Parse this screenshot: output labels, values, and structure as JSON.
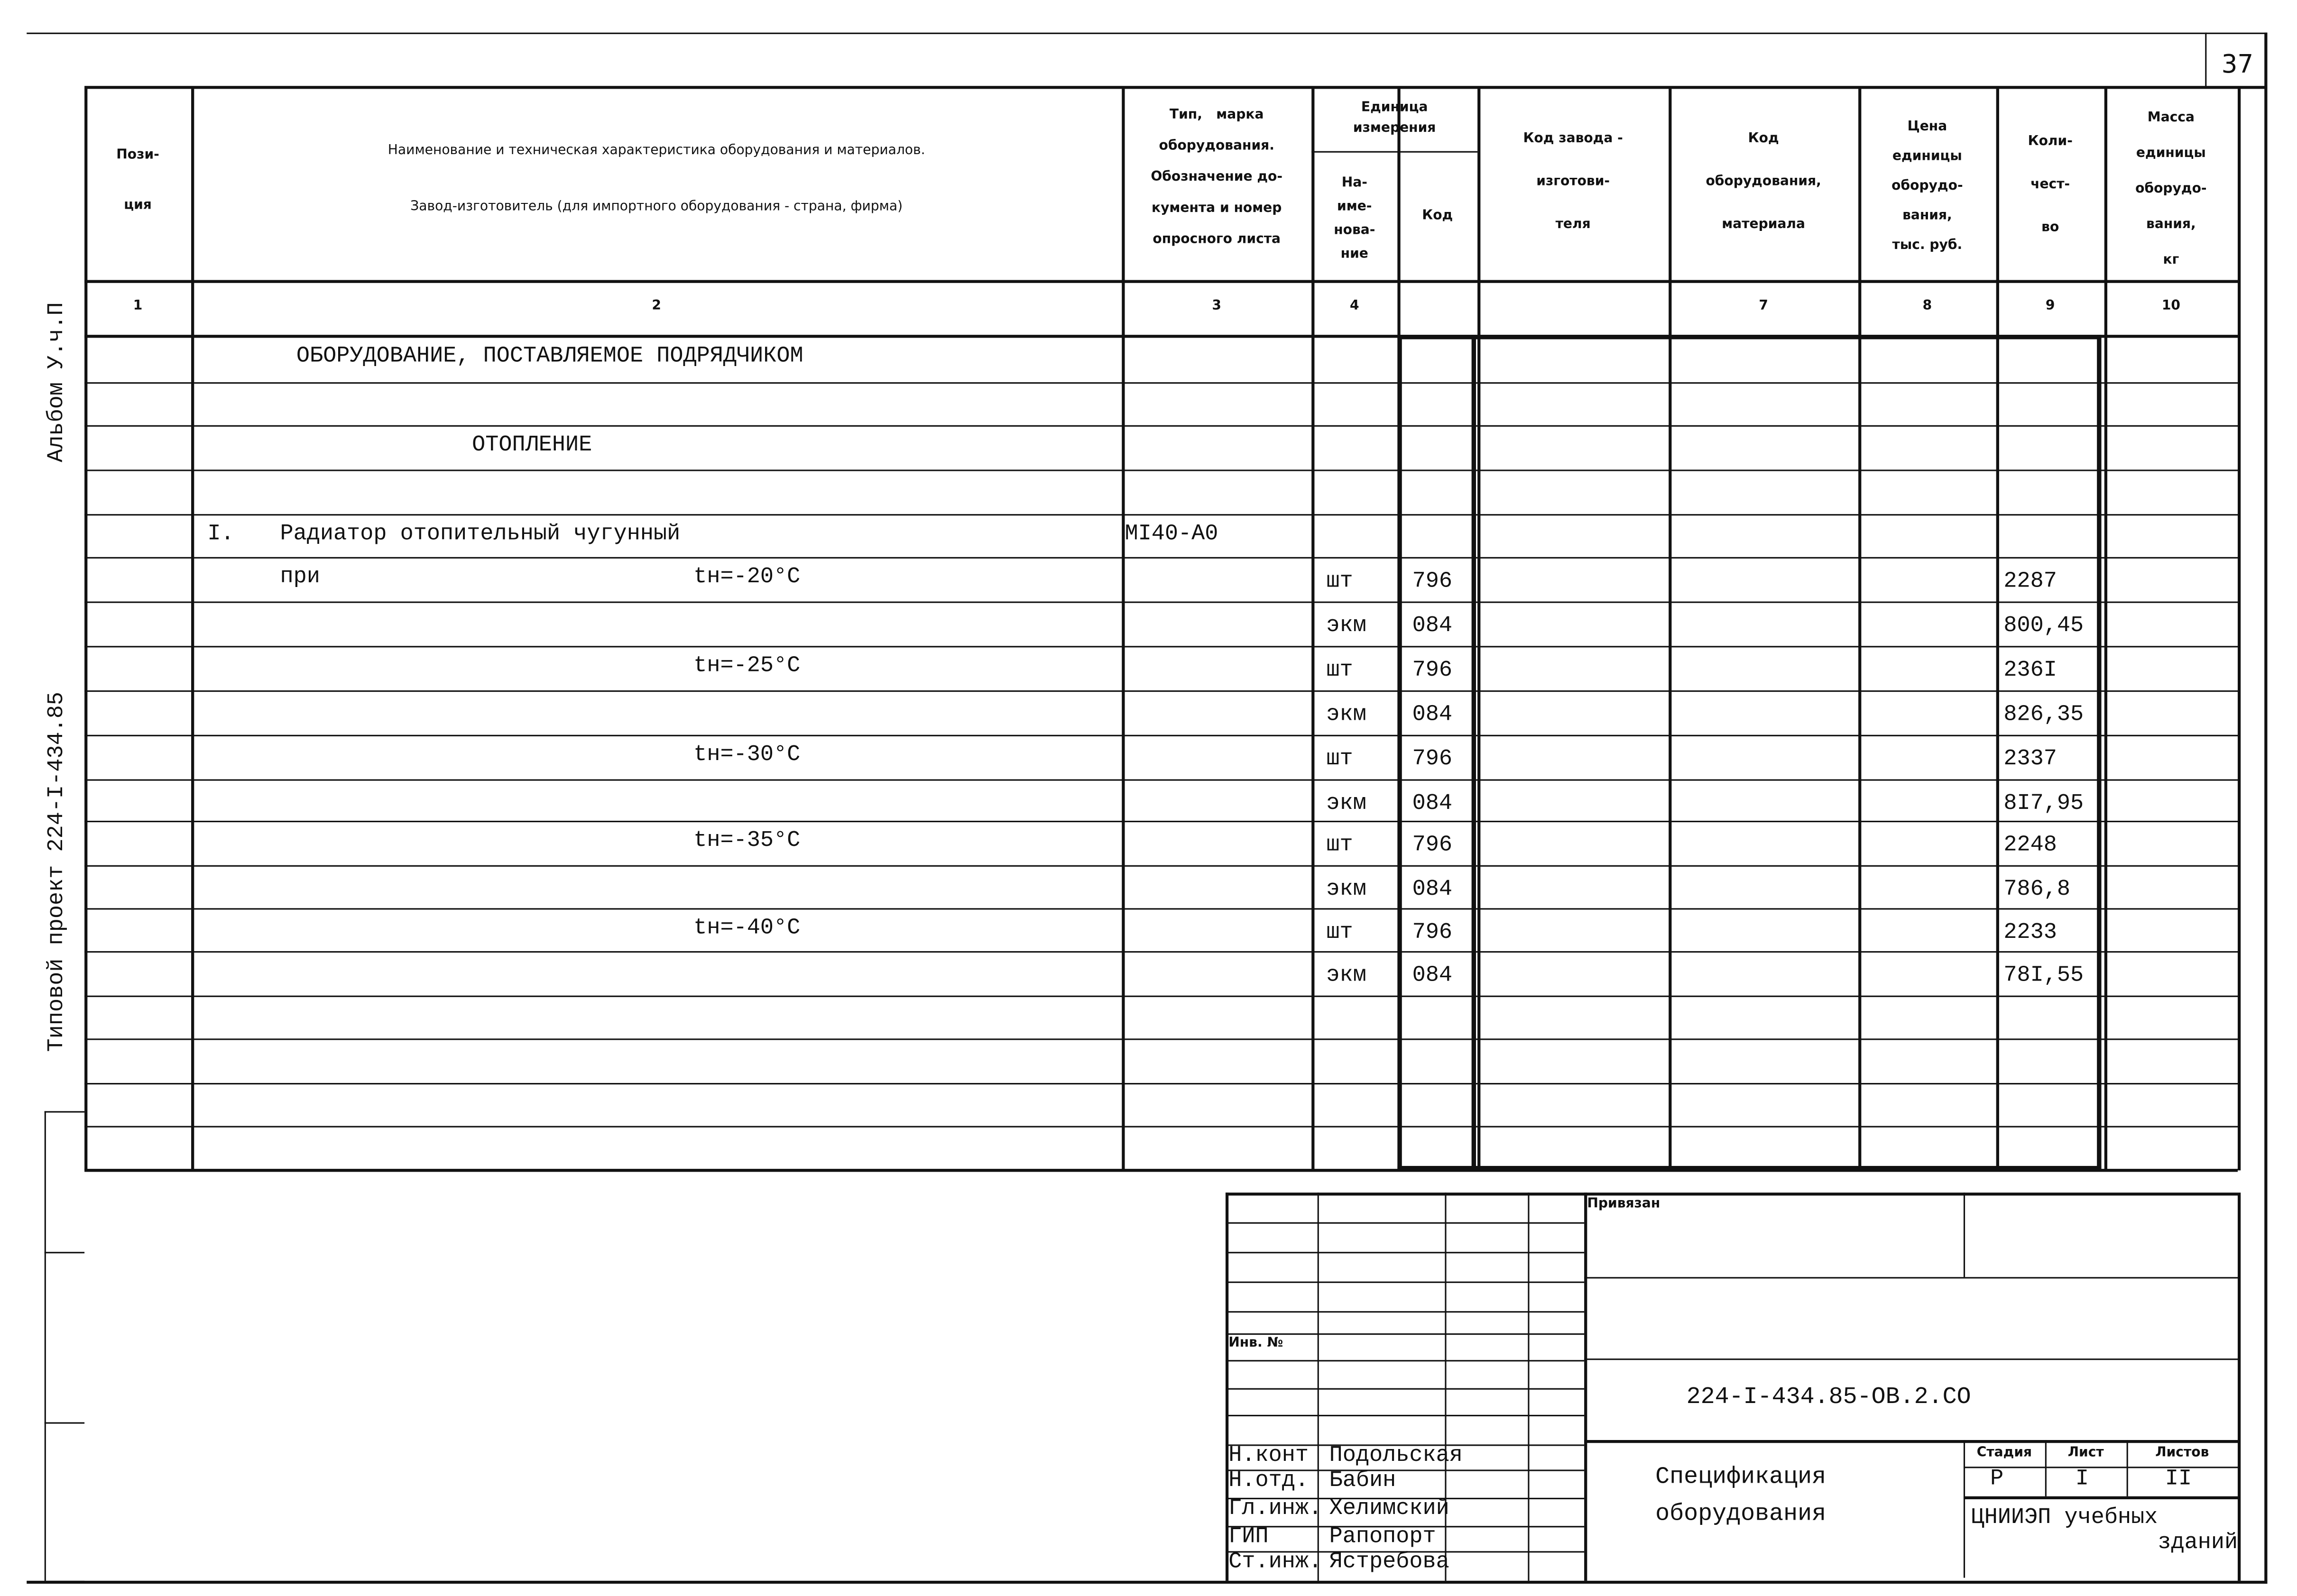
{
  "sheet_number": "37",
  "margin": {
    "album": "Альбом У.ч.П",
    "project": "Типовой проект   224-I-434.85"
  },
  "header": {
    "c1": "Пози-\nция",
    "c2a": "Наименование и техническая характеристика  оборудования и материалов.",
    "c2b": "Завод-изготовитель  (для импортного оборудования -   страна, фирма)",
    "c3": "Тип,   марка\nоборудования.\nОбозначение до-\nкумента и номер\nопросного листа",
    "c4": "Единица\nизмерения",
    "c4a": "На-\nиме-\nнова-\nние",
    "c4b": "Код",
    "c5": "Код завода -\nизготови-\nтеля",
    "c6": "Код\nоборудования,\nматериала",
    "c7": "Цена\nединицы\nоборудо-\nвания,\nтыс. руб.",
    "c8": "Коли-\nчест-\nво",
    "c9": "Масса\nединицы\nоборудо-\nвания,\nкг"
  },
  "col_numbers": [
    "1",
    "2",
    "3",
    "4",
    "",
    "",
    "7",
    "8",
    "9",
    "10"
  ],
  "rows": [
    {
      "name": "ОБОРУДОВАНИЕ, ПОСТАВЛЯЕМОЕ ПОДРЯДЧИКОМ"
    },
    {},
    {
      "name": "ОТОПЛЕНИЕ",
      "center": true
    },
    {},
    {
      "pos": "I.",
      "name": "Радиатор отопительный чугунный",
      "type": "МI40-А0"
    },
    {
      "name": "при",
      "temp": "tн=-20°C",
      "unit": "шт",
      "code": "796",
      "qty": "2287"
    },
    {
      "unit": "экм",
      "code": "084",
      "qty": "800,45"
    },
    {
      "temp": "tн=-25°C",
      "unit": "шт",
      "code": "796",
      "qty": "236I"
    },
    {
      "unit": "экм",
      "code": "084",
      "qty": "826,35"
    },
    {
      "temp": "tн=-30°C",
      "unit": "шт",
      "code": "796",
      "qty": "2337"
    },
    {
      "unit": "экм",
      "code": "084",
      "qty": "8I7,95"
    },
    {
      "temp": "tн=-35°C",
      "unit": "шт",
      "code": "796",
      "qty": "2248"
    },
    {
      "unit": "экм",
      "code": "084",
      "qty": "786,8"
    },
    {
      "temp": "tн=-40°C",
      "unit": "шт",
      "code": "796",
      "qty": "2233"
    },
    {
      "unit": "экм",
      "code": "084",
      "qty": "78I,55"
    },
    {},
    {},
    {},
    {}
  ],
  "title_block": {
    "privyazan": "Привязан",
    "inv": "Инв. №",
    "doc_code": "224-I-434.85-ОВ.2.СО",
    "title": "Спецификация\nоборудования",
    "stage_h": "Стадия",
    "sheet_h": "Лист",
    "sheets_h": "Листов",
    "stage": "Р",
    "sheet": "I",
    "sheets": "II",
    "org": "ЦНИИЭП учебных\n              зданий",
    "signers": [
      {
        "role": "Н.конт",
        "name": "Подольская"
      },
      {
        "role": "Н.отд.",
        "name": "Бабин"
      },
      {
        "role": "Гл.инж.",
        "name": "Хелимский"
      },
      {
        "role": "ГИП",
        "name": "Рапопорт"
      },
      {
        "role": "Ст.инж.",
        "name": "Ястребова"
      }
    ]
  }
}
